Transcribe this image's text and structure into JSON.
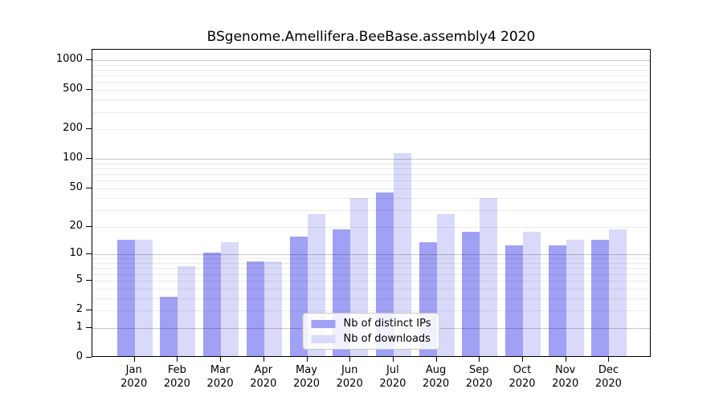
{
  "figure": {
    "title": "BSgenome.Amellifera.BeeBase.assembly4 2020"
  },
  "chart_data": {
    "type": "bar",
    "title": "BSgenome.Amellifera.BeeBase.assembly4 2020",
    "categories": [
      {
        "month": "Jan",
        "year": "2020"
      },
      {
        "month": "Feb",
        "year": "2020"
      },
      {
        "month": "Mar",
        "year": "2020"
      },
      {
        "month": "Apr",
        "year": "2020"
      },
      {
        "month": "May",
        "year": "2020"
      },
      {
        "month": "Jun",
        "year": "2020"
      },
      {
        "month": "Jul",
        "year": "2020"
      },
      {
        "month": "Aug",
        "year": "2020"
      },
      {
        "month": "Sep",
        "year": "2020"
      },
      {
        "month": "Oct",
        "year": "2020"
      },
      {
        "month": "Nov",
        "year": "2020"
      },
      {
        "month": "Dec",
        "year": "2020"
      }
    ],
    "series": [
      {
        "name": "Nb of distinct IPs",
        "color": "#a0a0f4",
        "values": [
          14,
          3,
          10,
          8,
          15,
          18,
          44,
          13,
          17,
          12,
          12,
          14
        ]
      },
      {
        "name": "Nb of downloads",
        "color": "#d9d9fa",
        "values": [
          14,
          7,
          13,
          8,
          26,
          38,
          110,
          26,
          38,
          17,
          14,
          18
        ]
      }
    ],
    "xlabel": "",
    "ylabel": "",
    "y_axis": {
      "scale": "log1p",
      "ylim": [
        0,
        1274
      ],
      "ticks": [
        0,
        1,
        2,
        5,
        10,
        20,
        50,
        100,
        200,
        500,
        1000
      ],
      "major_grid": [
        1,
        10,
        100,
        1000
      ],
      "minor_grid": [
        2,
        3,
        4,
        5,
        6,
        7,
        8,
        9,
        20,
        30,
        40,
        50,
        60,
        70,
        80,
        90,
        200,
        300,
        400,
        500,
        600,
        700,
        800,
        900
      ]
    },
    "legend": {
      "position": "lower center",
      "labels": [
        "Nb of distinct IPs",
        "Nb of downloads"
      ]
    }
  }
}
